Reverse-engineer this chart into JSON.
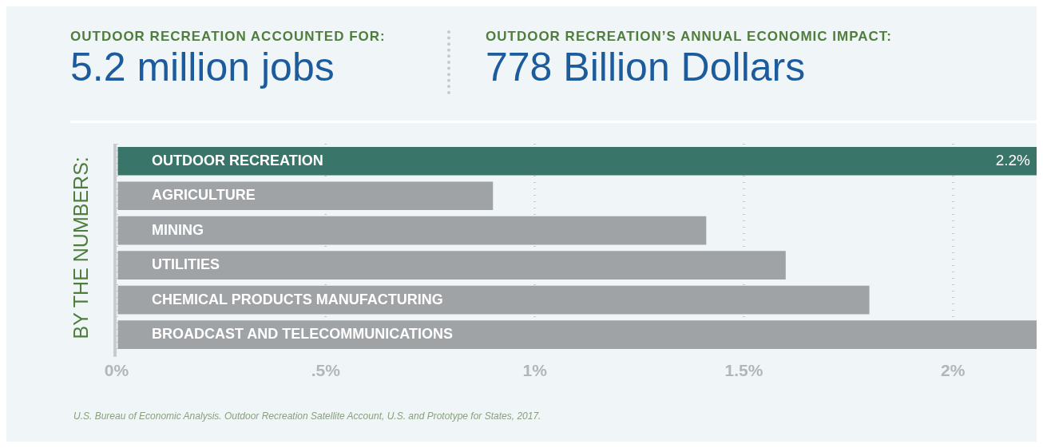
{
  "chart_data": {
    "type": "bar",
    "orientation": "horizontal",
    "ylabel": "BY THE NUMBERS:",
    "annotations": [
      "OUTDOOR RECREATION ACCOUNTED FOR:",
      "5.2 million jobs",
      "OUTDOOR RECREATION’S ANNUAL ECONOMIC IMPACT:",
      "778 Billion Dollars",
      "U.S. Bureau of Economic Analysis. Outdoor Recreation Satellite Account, U.S. and Prototype for States, 2017."
    ],
    "categories": [
      "OUTDOOR RECREATION",
      "AGRICULTURE",
      "MINING",
      "UTILITIES",
      "CHEMICAL PRODUCTS MANUFACTURING",
      "BROADCAST AND TELECOMMUNICATIONS"
    ],
    "values": [
      2.2,
      0.9,
      1.41,
      1.6,
      1.8,
      2.2
    ],
    "value_labels": [
      "2.2%",
      null,
      null,
      null,
      null,
      null
    ],
    "colors": [
      "#3a7569",
      "#a0a3a6",
      "#a0a3a6",
      "#a0a3a6",
      "#a0a3a6",
      "#a0a3a6"
    ],
    "xlim": [
      0,
      2.2
    ],
    "xticks": [
      {
        "value": 0,
        "label": "0%"
      },
      {
        "value": 0.5,
        "label": ".5%"
      },
      {
        "value": 1,
        "label": "1%"
      },
      {
        "value": 1.5,
        "label": "1.5%"
      },
      {
        "value": 2,
        "label": "2%"
      }
    ],
    "grid": "x",
    "legend": false
  }
}
